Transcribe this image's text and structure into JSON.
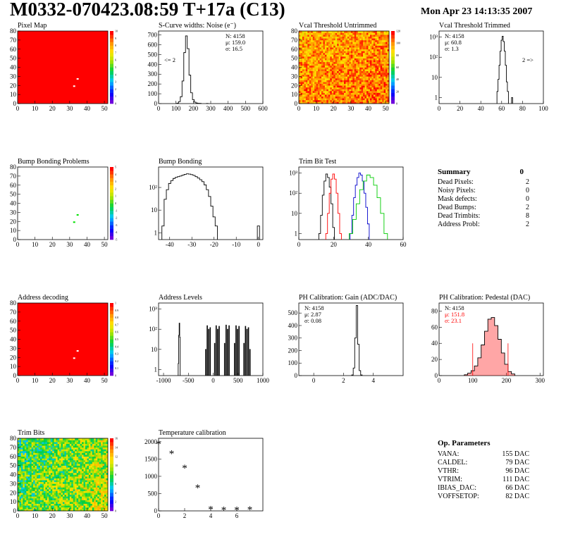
{
  "title": "M0332-070423.08:59 T+17a (C13)",
  "date": "Mon Apr 23 14:13:35 2007",
  "colors": {
    "red": "#ff0000",
    "green": "#00cc00",
    "blue": "#0000cc",
    "black": "#000000"
  },
  "summary": {
    "title": "Summary",
    "total": "0",
    "rows": [
      {
        "label": "Dead Pixels:",
        "value": "2"
      },
      {
        "label": "Noisy Pixels:",
        "value": "0"
      },
      {
        "label": "Mask defects:",
        "value": "0"
      },
      {
        "label": "Dead Bumps:",
        "value": "2"
      },
      {
        "label": "Dead Trimbits:",
        "value": "8"
      },
      {
        "label": "Address Probl:",
        "value": "2"
      }
    ]
  },
  "op_params": {
    "title": "Op. Parameters",
    "rows": [
      {
        "label": "VANA:",
        "value": "155 DAC"
      },
      {
        "label": "CALDEL:",
        "value": "79 DAC"
      },
      {
        "label": "VTHR:",
        "value": "96 DAC"
      },
      {
        "label": "VTRIM:",
        "value": "111 DAC"
      },
      {
        "label": "IBIAS_DAC:",
        "value": "66 DAC"
      },
      {
        "label": "VOFFSETOP:",
        "value": "82 DAC"
      }
    ]
  },
  "chart_data": [
    {
      "id": "pixel-map",
      "type": "heatmap",
      "title": "Pixel Map",
      "xticks": [
        "0",
        "10",
        "20",
        "30",
        "40",
        "50"
      ],
      "yticks": [
        "0",
        "10",
        "20",
        "30",
        "40",
        "50",
        "60",
        "70",
        "80"
      ],
      "xlim": [
        0,
        52
      ],
      "ylim": [
        0,
        80
      ],
      "fill": "red",
      "anomalies": [
        {
          "x": 32,
          "y": 19
        },
        {
          "x": 34,
          "y": 27
        }
      ],
      "zticks": [
        "0",
        "1",
        "2",
        "3",
        "4",
        "5",
        "6",
        "7",
        "8",
        "9",
        "10"
      ]
    },
    {
      "id": "scurve",
      "type": "bar",
      "title": "S-Curve widths: Noise (e⁻)",
      "xticks": [
        "0",
        "100",
        "200",
        "300",
        "400",
        "500",
        "600"
      ],
      "yticks": [
        "0",
        "100",
        "200",
        "300",
        "400",
        "500",
        "600",
        "700"
      ],
      "xlim": [
        0,
        600
      ],
      "ylim": [
        0,
        740
      ],
      "stats": [
        "N: 4158",
        "μ: 159.0",
        "σ: 16.5"
      ],
      "note": "<= 2",
      "values": [
        {
          "x": 110,
          "y": 5
        },
        {
          "x": 120,
          "y": 20
        },
        {
          "x": 130,
          "y": 70
        },
        {
          "x": 140,
          "y": 230
        },
        {
          "x": 150,
          "y": 520
        },
        {
          "x": 160,
          "y": 690
        },
        {
          "x": 170,
          "y": 560
        },
        {
          "x": 180,
          "y": 290
        },
        {
          "x": 190,
          "y": 110
        },
        {
          "x": 200,
          "y": 40
        },
        {
          "x": 210,
          "y": 15
        },
        {
          "x": 220,
          "y": 6
        },
        {
          "x": 230,
          "y": 3
        },
        {
          "x": 240,
          "y": 2
        },
        {
          "x": 280,
          "y": 1
        }
      ]
    },
    {
      "id": "vcal-untrimmed",
      "type": "heatmap",
      "title": "Vcal Threshold Untrimmed",
      "xticks": [
        "0",
        "10",
        "20",
        "30",
        "40",
        "50"
      ],
      "yticks": [
        "0",
        "10",
        "20",
        "30",
        "40",
        "50",
        "60",
        "70",
        "80"
      ],
      "xlim": [
        0,
        52
      ],
      "ylim": [
        0,
        80
      ],
      "fill": "noise-orange",
      "zticks": [
        "0",
        "20",
        "40",
        "60",
        "80",
        "100",
        "120"
      ]
    },
    {
      "id": "vcal-trimmed",
      "type": "bar",
      "title": "Vcal Threshold Trimmed",
      "xticks": [
        "0",
        "20",
        "40",
        "60",
        "80",
        "100"
      ],
      "yticks": [
        "1",
        "10",
        "10²",
        "10³"
      ],
      "xlim": [
        0,
        100
      ],
      "log": true,
      "ylim": [
        0.5,
        2000
      ],
      "stats": [
        "N: 4158",
        "μ: 60.8",
        "σ: 1.3"
      ],
      "note": "2 =>",
      "values": [
        {
          "x": 56,
          "y": 2
        },
        {
          "x": 57,
          "y": 8
        },
        {
          "x": 58,
          "y": 40
        },
        {
          "x": 59,
          "y": 200
        },
        {
          "x": 60,
          "y": 700
        },
        {
          "x": 61,
          "y": 1100
        },
        {
          "x": 62,
          "y": 600
        },
        {
          "x": 63,
          "y": 200
        },
        {
          "x": 64,
          "y": 40
        },
        {
          "x": 65,
          "y": 6
        },
        {
          "x": 66,
          "y": 2
        },
        {
          "x": 70,
          "y": 1
        }
      ]
    },
    {
      "id": "bump-bonding-problems",
      "type": "heatmap",
      "title": "Bump Bonding Problems",
      "xticks": [
        "0",
        "10",
        "20",
        "30",
        "40",
        "50"
      ],
      "yticks": [
        "0",
        "10",
        "20",
        "30",
        "40",
        "50",
        "60",
        "70",
        "80"
      ],
      "xlim": [
        0,
        52
      ],
      "ylim": [
        0,
        80
      ],
      "fill": "white",
      "anomalies": [
        {
          "x": 32,
          "y": 19
        },
        {
          "x": 34,
          "y": 27
        }
      ],
      "zticks": [
        "-5",
        "-4",
        "-3",
        "-2",
        "-1",
        "0",
        "1",
        "2",
        "3",
        "4",
        "5"
      ]
    },
    {
      "id": "bump-bonding",
      "type": "bar",
      "title": "Bump Bonding",
      "xticks": [
        "-40",
        "-30",
        "-20",
        "-10",
        "0"
      ],
      "yticks": [
        "1",
        "10",
        "10²"
      ],
      "xlim": [
        -45,
        2
      ],
      "log": true,
      "ylim": [
        0.5,
        800
      ],
      "values": [
        {
          "x": -43,
          "y": 2
        },
        {
          "x": -42,
          "y": 30
        },
        {
          "x": -41,
          "y": 80
        },
        {
          "x": -40,
          "y": 150
        },
        {
          "x": -39,
          "y": 200
        },
        {
          "x": -38,
          "y": 250
        },
        {
          "x": -37,
          "y": 280
        },
        {
          "x": -36,
          "y": 300
        },
        {
          "x": -35,
          "y": 320
        },
        {
          "x": -34,
          "y": 350
        },
        {
          "x": -33,
          "y": 380
        },
        {
          "x": -32,
          "y": 400
        },
        {
          "x": -31,
          "y": 390
        },
        {
          "x": -30,
          "y": 370
        },
        {
          "x": -29,
          "y": 340
        },
        {
          "x": -28,
          "y": 300
        },
        {
          "x": -27,
          "y": 260
        },
        {
          "x": -26,
          "y": 220
        },
        {
          "x": -25,
          "y": 180
        },
        {
          "x": -24,
          "y": 130
        },
        {
          "x": -23,
          "y": 80
        },
        {
          "x": -22,
          "y": 40
        },
        {
          "x": -21,
          "y": 15
        },
        {
          "x": -20,
          "y": 5
        },
        {
          "x": -19,
          "y": 2
        },
        {
          "x": 0,
          "y": 2
        }
      ]
    },
    {
      "id": "trim-bit-test",
      "type": "line",
      "title": "Trim Bit Test",
      "xticks": [
        "0",
        "20",
        "40",
        "60"
      ],
      "yticks": [
        "1",
        "10",
        "10²",
        "10³"
      ],
      "xlim": [
        0,
        60
      ],
      "log": true,
      "ylim": [
        0.5,
        2000
      ],
      "series": [
        {
          "color": "#000000",
          "values": [
            {
              "x": 12,
              "y": 1
            },
            {
              "x": 13,
              "y": 8
            },
            {
              "x": 14,
              "y": 80
            },
            {
              "x": 15,
              "y": 400
            },
            {
              "x": 16,
              "y": 900
            },
            {
              "x": 17,
              "y": 600
            },
            {
              "x": 18,
              "y": 200
            },
            {
              "x": 19,
              "y": 30
            },
            {
              "x": 20,
              "y": 2
            }
          ]
        },
        {
          "color": "#ff0000",
          "values": [
            {
              "x": 16,
              "y": 1
            },
            {
              "x": 17,
              "y": 10
            },
            {
              "x": 18,
              "y": 100
            },
            {
              "x": 19,
              "y": 500
            },
            {
              "x": 20,
              "y": 900
            },
            {
              "x": 21,
              "y": 500
            },
            {
              "x": 22,
              "y": 100
            },
            {
              "x": 23,
              "y": 10
            },
            {
              "x": 24,
              "y": 1
            }
          ]
        },
        {
          "color": "#0000cc",
          "values": [
            {
              "x": 30,
              "y": 1
            },
            {
              "x": 31,
              "y": 8
            },
            {
              "x": 32,
              "y": 60
            },
            {
              "x": 33,
              "y": 250
            },
            {
              "x": 34,
              "y": 600
            },
            {
              "x": 35,
              "y": 1000
            },
            {
              "x": 36,
              "y": 800
            },
            {
              "x": 37,
              "y": 400
            },
            {
              "x": 38,
              "y": 100
            },
            {
              "x": 39,
              "y": 20
            },
            {
              "x": 40,
              "y": 3
            }
          ]
        },
        {
          "color": "#00cc00",
          "values": [
            {
              "x": 30,
              "y": 1
            },
            {
              "x": 32,
              "y": 5
            },
            {
              "x": 34,
              "y": 30
            },
            {
              "x": 36,
              "y": 150
            },
            {
              "x": 38,
              "y": 400
            },
            {
              "x": 40,
              "y": 800
            },
            {
              "x": 42,
              "y": 600
            },
            {
              "x": 44,
              "y": 250
            },
            {
              "x": 46,
              "y": 60
            },
            {
              "x": 48,
              "y": 10
            },
            {
              "x": 50,
              "y": 1
            }
          ]
        }
      ]
    },
    {
      "id": "address-decoding",
      "type": "heatmap",
      "title": "Address decoding",
      "xticks": [
        "0",
        "10",
        "20",
        "30",
        "40",
        "50"
      ],
      "yticks": [
        "0",
        "10",
        "20",
        "30",
        "40",
        "50",
        "60",
        "70",
        "80"
      ],
      "xlim": [
        0,
        52
      ],
      "ylim": [
        0,
        80
      ],
      "fill": "red",
      "anomalies": [
        {
          "x": 32,
          "y": 19
        },
        {
          "x": 34,
          "y": 27
        }
      ],
      "zticks": [
        "0",
        "0.1",
        "0.2",
        "0.3",
        "0.4",
        "0.5",
        "0.6",
        "0.7",
        "0.8",
        "0.9",
        "1"
      ]
    },
    {
      "id": "address-levels",
      "type": "bar",
      "title": "Address Levels",
      "xticks": [
        "-1000",
        "-500",
        "0",
        "500",
        "1000"
      ],
      "yticks": [
        "1",
        "10",
        "10²",
        "10³"
      ],
      "xlim": [
        -1100,
        1000
      ],
      "log": true,
      "ylim": [
        0.5,
        2000
      ],
      "values": [
        {
          "x": -700,
          "y": 2
        },
        {
          "x": -690,
          "y": 50
        },
        {
          "x": -680,
          "y": 200
        },
        {
          "x": -670,
          "y": 40
        },
        {
          "x": -150,
          "y": 10
        },
        {
          "x": -120,
          "y": 150
        },
        {
          "x": -90,
          "y": 100
        },
        {
          "x": -60,
          "y": 120
        },
        {
          "x": 30,
          "y": 20
        },
        {
          "x": 60,
          "y": 150
        },
        {
          "x": 90,
          "y": 100
        },
        {
          "x": 120,
          "y": 140
        },
        {
          "x": 230,
          "y": 20
        },
        {
          "x": 260,
          "y": 160
        },
        {
          "x": 290,
          "y": 100
        },
        {
          "x": 320,
          "y": 150
        },
        {
          "x": 430,
          "y": 20
        },
        {
          "x": 460,
          "y": 150
        },
        {
          "x": 490,
          "y": 100
        },
        {
          "x": 520,
          "y": 140
        },
        {
          "x": 620,
          "y": 20
        },
        {
          "x": 650,
          "y": 140
        },
        {
          "x": 680,
          "y": 100
        },
        {
          "x": 710,
          "y": 120
        },
        {
          "x": 740,
          "y": 10
        }
      ]
    },
    {
      "id": "ph-gain",
      "type": "bar",
      "title": "PH Calibration: Gain (ADC/DAC)",
      "xticks": [
        "0",
        "2",
        "4"
      ],
      "yticks": [
        "0",
        "100",
        "200",
        "300",
        "400",
        "500"
      ],
      "xlim": [
        -1,
        6
      ],
      "ylim": [
        0,
        580
      ],
      "stats": [
        "N: 4158",
        "μ: 2.87",
        "σ: 0.08"
      ],
      "values": [
        {
          "x": 2.6,
          "y": 5
        },
        {
          "x": 2.7,
          "y": 60
        },
        {
          "x": 2.8,
          "y": 300
        },
        {
          "x": 2.9,
          "y": 560
        },
        {
          "x": 3.0,
          "y": 250
        },
        {
          "x": 3.1,
          "y": 40
        },
        {
          "x": 3.2,
          "y": 5
        }
      ]
    },
    {
      "id": "ph-pedestal",
      "type": "bar",
      "title": "PH Calibration: Pedestal (DAC)",
      "xticks": [
        "0",
        "100",
        "200",
        "300"
      ],
      "yticks": [
        "0",
        "20",
        "40",
        "60",
        "80"
      ],
      "xlim": [
        0,
        310
      ],
      "ylim": [
        0,
        90
      ],
      "stats": [
        "N: 4158",
        "μ: 151.8",
        "σ: 23.1"
      ],
      "values": [
        {
          "x": 80,
          "y": 1
        },
        {
          "x": 90,
          "y": 3
        },
        {
          "x": 100,
          "y": 6
        },
        {
          "x": 110,
          "y": 12
        },
        {
          "x": 120,
          "y": 22
        },
        {
          "x": 130,
          "y": 38
        },
        {
          "x": 140,
          "y": 55
        },
        {
          "x": 150,
          "y": 70
        },
        {
          "x": 160,
          "y": 72
        },
        {
          "x": 170,
          "y": 62
        },
        {
          "x": 180,
          "y": 45
        },
        {
          "x": 190,
          "y": 28
        },
        {
          "x": 200,
          "y": 14
        },
        {
          "x": 210,
          "y": 5
        },
        {
          "x": 220,
          "y": 2
        }
      ]
    },
    {
      "id": "trim-bits",
      "type": "heatmap",
      "title": "Trim Bits",
      "xticks": [
        "0",
        "10",
        "20",
        "30",
        "40",
        "50"
      ],
      "yticks": [
        "0",
        "10",
        "20",
        "30",
        "40",
        "50",
        "60",
        "70",
        "80"
      ],
      "xlim": [
        0,
        52
      ],
      "ylim": [
        0,
        80
      ],
      "fill": "noise-green",
      "zticks": [
        "0",
        "2",
        "4",
        "6",
        "8",
        "10",
        "12",
        "14",
        "16"
      ]
    },
    {
      "id": "temperature",
      "type": "scatter",
      "title": "Temperature calibration",
      "xticks": [
        "0",
        "2",
        "4",
        "6"
      ],
      "yticks": [
        "0",
        "500",
        "1000",
        "1500",
        "2000"
      ],
      "xlim": [
        0,
        8
      ],
      "ylim": [
        0,
        2100
      ],
      "values": [
        {
          "x": 0,
          "y": 1940
        },
        {
          "x": 1,
          "y": 1660
        },
        {
          "x": 2,
          "y": 1240
        },
        {
          "x": 3,
          "y": 670
        },
        {
          "x": 4,
          "y": 50
        },
        {
          "x": 5,
          "y": 30
        },
        {
          "x": 6,
          "y": 30
        },
        {
          "x": 7,
          "y": 40
        }
      ]
    }
  ]
}
